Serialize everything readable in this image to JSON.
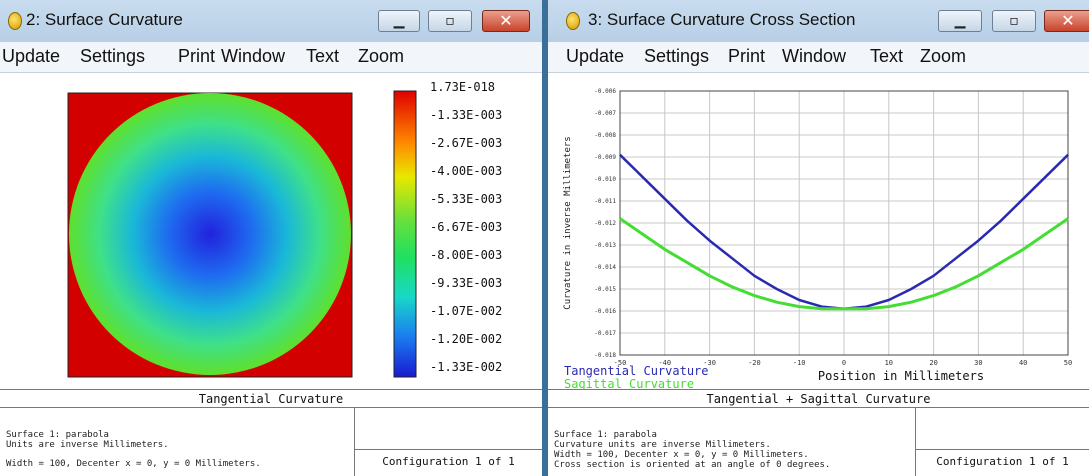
{
  "windows": [
    {
      "title": "2: Surface Curvature",
      "menu": [
        "Update",
        "Settings",
        "Print",
        "Window",
        "Text",
        "Zoom"
      ],
      "plot_caption": "Tangential Curvature",
      "colorbar_labels": [
        "1.73E-018",
        "-1.33E-003",
        "-2.67E-003",
        "-4.00E-003",
        "-5.33E-003",
        "-6.67E-003",
        "-8.00E-003",
        "-9.33E-003",
        "-1.07E-002",
        "-1.20E-002",
        "-1.33E-002"
      ],
      "info_lines": [
        "Surface 1: parabola",
        "Units are inverse Millimeters.",
        "Width = 100, Decenter x = 0, y = 0 Millimeters."
      ],
      "configuration": "Configuration 1 of 1"
    },
    {
      "title": "3: Surface Curvature Cross Section",
      "menu": [
        "Update",
        "Settings",
        "Print",
        "Window",
        "Text",
        "Zoom"
      ],
      "plot_caption": "Tangential + Sagittal Curvature",
      "info_lines": [
        "Surface 1: parabola",
        "Curvature units are inverse Millimeters.",
        "Width = 100, Decenter x = 0, y = 0 Millimeters.",
        "Cross section is oriented at an angle of 0 degrees."
      ],
      "configuration": "Configuration 1 of 1"
    }
  ],
  "chart_data": {
    "type": "line",
    "title": "",
    "xlabel": "Position in Millimeters",
    "ylabel": "Curvature in inverse Millimeters",
    "xlim": [
      -50,
      50
    ],
    "ylim": [
      -0.018,
      -0.006
    ],
    "x_ticks": [
      "-50",
      "-40",
      "-30",
      "-20",
      "-10",
      "0",
      "10",
      "20",
      "30",
      "40",
      "50"
    ],
    "y_ticks": [
      "-0.006",
      "-0.007",
      "-0.008",
      "-0.009",
      "-0.010",
      "-0.011",
      "-0.012",
      "-0.013",
      "-0.014",
      "-0.015",
      "-0.016",
      "-0.017",
      "-0.018"
    ],
    "grid": true,
    "series": [
      {
        "name": "Tangential Curvature",
        "color": "#2a2ab0",
        "x": [
          -50,
          -45,
          -40,
          -35,
          -30,
          -25,
          -20,
          -15,
          -10,
          -5,
          0,
          5,
          10,
          15,
          20,
          25,
          30,
          35,
          40,
          45,
          50
        ],
        "y": [
          -0.0089,
          -0.0099,
          -0.0109,
          -0.0119,
          -0.0128,
          -0.0136,
          -0.0144,
          -0.015,
          -0.0155,
          -0.0158,
          -0.0159,
          -0.0158,
          -0.0155,
          -0.015,
          -0.0144,
          -0.0136,
          -0.0128,
          -0.0119,
          -0.0109,
          -0.0099,
          -0.0089
        ]
      },
      {
        "name": "Sagittal Curvature",
        "color": "#44dd33",
        "x": [
          -50,
          -45,
          -40,
          -35,
          -30,
          -25,
          -20,
          -15,
          -10,
          -5,
          0,
          5,
          10,
          15,
          20,
          25,
          30,
          35,
          40,
          45,
          50
        ],
        "y": [
          -0.0118,
          -0.0125,
          -0.0132,
          -0.0138,
          -0.0144,
          -0.0149,
          -0.0153,
          -0.0156,
          -0.0158,
          -0.0159,
          -0.0159,
          -0.0159,
          -0.0158,
          -0.0156,
          -0.0153,
          -0.0149,
          -0.0144,
          -0.0138,
          -0.0132,
          -0.0125,
          -0.0118
        ]
      }
    ]
  }
}
